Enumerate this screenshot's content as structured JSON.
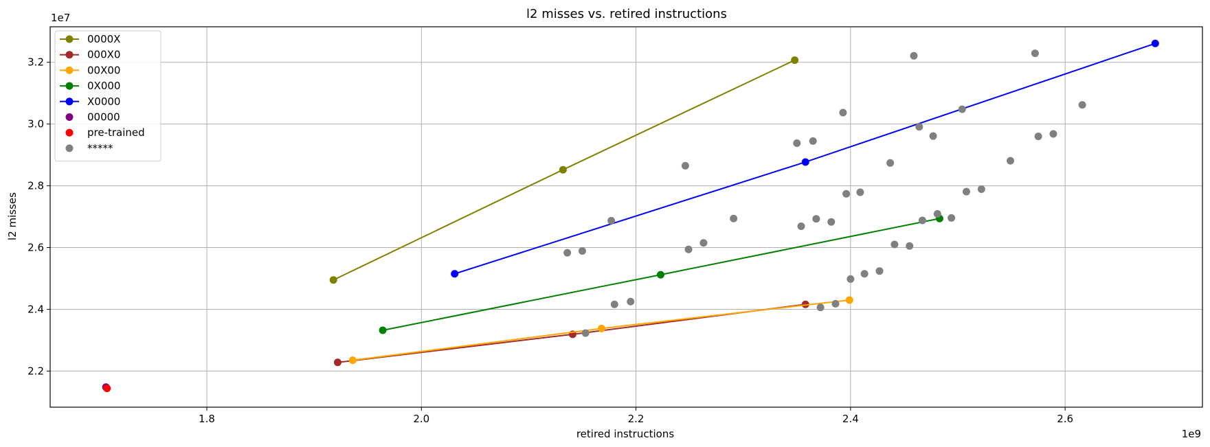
{
  "chart_data": {
    "type": "scatter",
    "title": "l2 misses vs. retired instructions",
    "xlabel": "retired instructions",
    "ylabel": "l2 misses",
    "x_offset_label": "1e9",
    "y_offset_label": "1e7",
    "xlim": [
      1654000000.0,
      2728000000.0
    ],
    "ylim": [
      20830000.0,
      33150000.0
    ],
    "xticks": [
      1800000000.0,
      2000000000.0,
      2200000000.0,
      2400000000.0,
      2600000000.0
    ],
    "xtick_labels": [
      "1.8",
      "2.0",
      "2.2",
      "2.4",
      "2.6"
    ],
    "yticks": [
      22000000.0,
      24000000.0,
      26000000.0,
      28000000.0,
      30000000.0,
      32000000.0
    ],
    "ytick_labels": [
      "2.2",
      "2.4",
      "2.6",
      "2.8",
      "3.0",
      "3.2"
    ],
    "grid": true,
    "legend_position": "top-left",
    "series": [
      {
        "name": "0000X",
        "color": "#808000",
        "mode": "line-marker",
        "x": [
          1918000000.0,
          2132000000.0,
          2348000000.0
        ],
        "y": [
          24950000.0,
          28520000.0,
          32070000.0
        ]
      },
      {
        "name": "000X0",
        "color": "#a52a2a",
        "mode": "line-marker",
        "x": [
          1922000000.0,
          2141000000.0,
          2358000000.0
        ],
        "y": [
          22280000.0,
          23190000.0,
          24160000.0
        ]
      },
      {
        "name": "00X00",
        "color": "#ffa500",
        "mode": "line-marker",
        "x": [
          1936000000.0,
          2168000000.0,
          2399000000.0
        ],
        "y": [
          22350000.0,
          23380000.0,
          24300000.0
        ]
      },
      {
        "name": "0X000",
        "color": "#008000",
        "mode": "line-marker",
        "x": [
          1964000000.0,
          2223000000.0,
          2483000000.0
        ],
        "y": [
          23320000.0,
          25120000.0,
          26940000.0
        ]
      },
      {
        "name": "X0000",
        "color": "#0000ff",
        "mode": "line-marker",
        "x": [
          2031000000.0,
          2358000000.0,
          2684000000.0
        ],
        "y": [
          25150000.0,
          28770000.0,
          32610000.0
        ]
      },
      {
        "name": "00000",
        "color": "#800080",
        "mode": "marker",
        "x": [
          1706000000.0
        ],
        "y": [
          21480000.0
        ]
      },
      {
        "name": "pre-trained",
        "color": "#ff0000",
        "mode": "marker",
        "x": [
          1707000000.0
        ],
        "y": [
          21440000.0
        ]
      },
      {
        "name": "*****",
        "color": "#808080",
        "mode": "marker",
        "x": [
          2136000000.0,
          2150000000.0,
          2177000000.0,
          2180000000.0,
          2195000000.0,
          2153000000.0,
          2246000000.0,
          2249000000.0,
          2263000000.0,
          2291000000.0,
          2350000000.0,
          2365000000.0,
          2354000000.0,
          2368000000.0,
          2382000000.0,
          2372000000.0,
          2386000000.0,
          2393000000.0,
          2396000000.0,
          2409000000.0,
          2400000000.0,
          2413000000.0,
          2427000000.0,
          2437000000.0,
          2441000000.0,
          2455000000.0,
          2459000000.0,
          2464000000.0,
          2467000000.0,
          2477000000.0,
          2481000000.0,
          2494000000.0,
          2504000000.0,
          2508000000.0,
          2522000000.0,
          2549000000.0,
          2572000000.0,
          2575000000.0,
          2589000000.0,
          2616000000.0
        ],
        "y": [
          25830000.0,
          25890000.0,
          26870000.0,
          24160000.0,
          24250000.0,
          23230000.0,
          28650000.0,
          25940000.0,
          26150000.0,
          26940000.0,
          29380000.0,
          29450000.0,
          26690000.0,
          26930000.0,
          26830000.0,
          24060000.0,
          24180000.0,
          30370000.0,
          27740000.0,
          27790000.0,
          24980000.0,
          25150000.0,
          25240000.0,
          28740000.0,
          26100000.0,
          26050000.0,
          32210000.0,
          29910000.0,
          26880000.0,
          29610000.0,
          27090000.0,
          26960000.0,
          30480000.0,
          27810000.0,
          27890000.0,
          28810000.0,
          32290000.0,
          29600000.0,
          29680000.0,
          30620000.0
        ]
      }
    ]
  }
}
